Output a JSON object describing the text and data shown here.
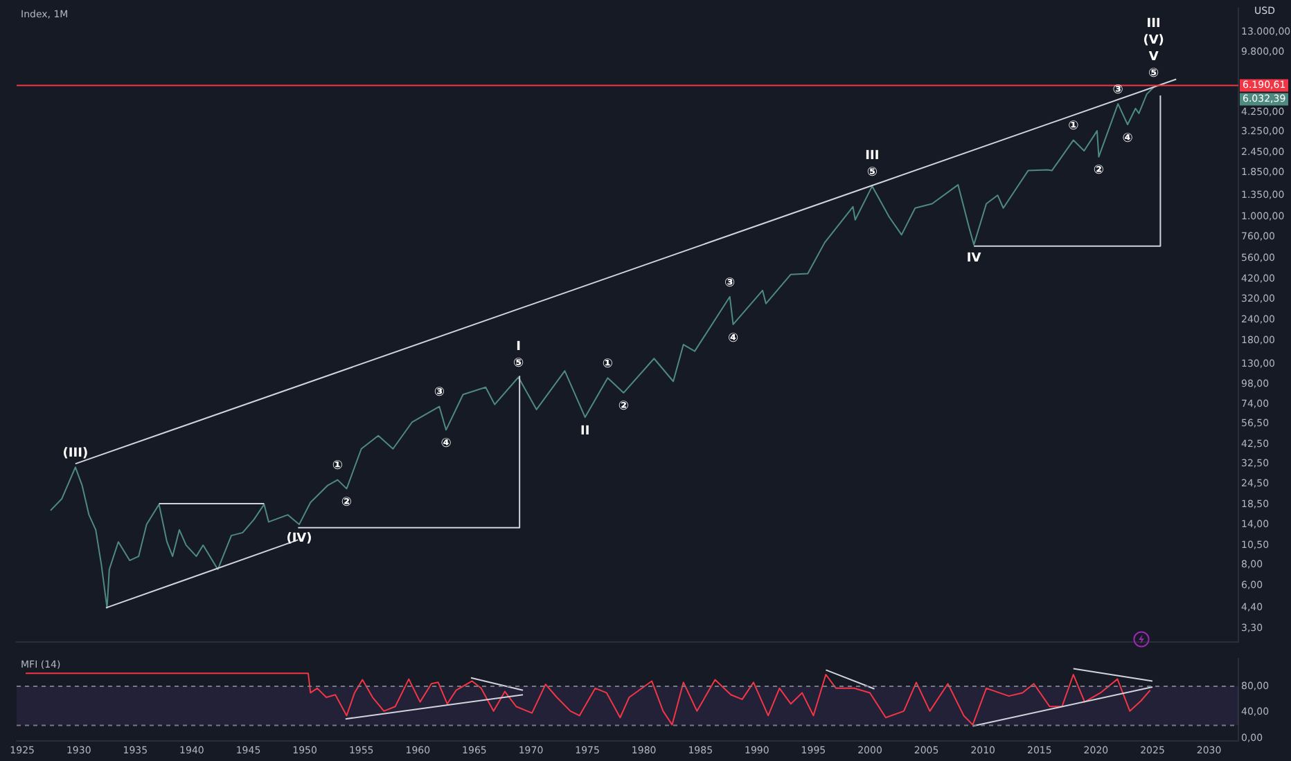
{
  "chart_data": [
    {
      "type": "line",
      "title": "Index, 1M",
      "log": true,
      "tick_labels": "y",
      "xlim": [
        1924.5,
        2032.6
      ],
      "ylim": [
        2.75,
        18000
      ],
      "yticks": [
        {
          "value": 3.3,
          "label": "3,30"
        },
        {
          "value": 4.4,
          "label": "4,40"
        },
        {
          "value": 6,
          "label": "6,00"
        },
        {
          "value": 8,
          "label": "8,00"
        },
        {
          "value": 10.5,
          "label": "10,50"
        },
        {
          "value": 14,
          "label": "14,00"
        },
        {
          "value": 18.5,
          "label": "18,50"
        },
        {
          "value": 24.5,
          "label": "24,50"
        },
        {
          "value": 32.5,
          "label": "32,50"
        },
        {
          "value": 42.5,
          "label": "42,50"
        },
        {
          "value": 56.5,
          "label": "56,50"
        },
        {
          "value": 74,
          "label": "74,00"
        },
        {
          "value": 98,
          "label": "98,00"
        },
        {
          "value": 130,
          "label": "130,00"
        },
        {
          "value": 180,
          "label": "180,00"
        },
        {
          "value": 240,
          "label": "240,00"
        },
        {
          "value": 320,
          "label": "320,00"
        },
        {
          "value": 420,
          "label": "420,00"
        },
        {
          "value": 560,
          "label": "560,00"
        },
        {
          "value": 760,
          "label": "760,00"
        },
        {
          "value": 1000,
          "label": "1.000,00"
        },
        {
          "value": 1350,
          "label": "1.350,00"
        },
        {
          "value": 1850,
          "label": "1.850,00"
        },
        {
          "value": 2450,
          "label": "2.450,00"
        },
        {
          "value": 3250,
          "label": "3.250,00"
        },
        {
          "value": 4250,
          "label": "4.250,00"
        },
        {
          "value": 9800,
          "label": "9.800,00"
        },
        {
          "value": 13000,
          "label": "13.000,00"
        }
      ],
      "series": [
        {
          "color": "#4f8a80",
          "x": [
            1927.5,
            1928.5,
            1929.7,
            1930.3,
            1930.9,
            1931.5,
            1932.0,
            1932.5,
            1932.7,
            1933.5,
            1934.5,
            1935.3,
            1936.0,
            1937.1,
            1937.8,
            1938.3,
            1938.9,
            1939.5,
            1940.4,
            1941.0,
            1942.3,
            1943.5,
            1944.5,
            1945.5,
            1946.4,
            1946.8,
            1948.5,
            1949.5,
            1950.5,
            1952,
            1952.9,
            1953.7,
            1955,
            1956.5,
            1957.8,
            1959.5,
            1961.9,
            1962.5,
            1964,
            1966,
            1966.8,
            1968.9,
            1970.5,
            1973,
            1974.8,
            1976.8,
            1978.2,
            1980.9,
            1982.6,
            1983.5,
            1984.5,
            1987.6,
            1987.9,
            1990.5,
            1990.8,
            1993,
            1994.5,
            1996,
            1998.5,
            1998.7,
            2000.2,
            2001.7,
            2002.8,
            2004,
            2005.5,
            2007.8,
            2008.8,
            2009.2,
            2010.3,
            2011.3,
            2011.8,
            2014,
            2015.7,
            2016.1,
            2018,
            2018.95,
            2020.1,
            2020.25,
            2021.95,
            2022.8,
            2023.5,
            2023.8,
            2024.5,
            2025.1
          ],
          "values": [
            17,
            20,
            31,
            24,
            16,
            13,
            8,
            4.4,
            7.5,
            11,
            8.5,
            9,
            14,
            18.5,
            11,
            9,
            13,
            10.5,
            9,
            10.5,
            7.5,
            12,
            12.5,
            15,
            18.5,
            14.5,
            16,
            14,
            19,
            24,
            26,
            23,
            40,
            48,
            40,
            58,
            72,
            52,
            85,
            94,
            74,
            108,
            69,
            118,
            62,
            107,
            87,
            140,
            102,
            170,
            155,
            330,
            225,
            360,
            300,
            450,
            455,
            700,
            1150,
            960,
            1530,
            1000,
            780,
            1130,
            1200,
            1560,
            850,
            680,
            1200,
            1350,
            1130,
            1900,
            1920,
            1900,
            2900,
            2500,
            3300,
            2300,
            4800,
            3600,
            4500,
            4200,
            5500,
            6032.39
          ]
        },
        {
          "color": "#d1d4dc",
          "x": [
            1929.7,
            2027.1
          ],
          "values": [
            32.5,
            6750
          ]
        },
        {
          "color": "#d1d4dc",
          "x": [
            1932.4,
            1949.4
          ],
          "values": [
            4.4,
            11.3
          ]
        },
        {
          "color": "#d1d4dc",
          "x": [
            1937.1,
            1946.4
          ],
          "values": [
            18.7,
            18.7
          ]
        },
        {
          "color": "#d1d4dc",
          "x": [
            1949.4,
            1969,
            1969
          ],
          "values": [
            13.4,
            13.4,
            110
          ]
        },
        {
          "color": "#d1d4dc",
          "x": [
            2009.2,
            2025.7,
            2025.7
          ],
          "values": [
            666,
            666,
            5390
          ]
        }
      ],
      "ref_lines": [
        {
          "axis": "y",
          "value": 6190.61,
          "label": "6.190,61",
          "color": "#f23645"
        }
      ],
      "annotations": [
        "USD",
        "6.032,39",
        {
          "text": "(III)",
          "x": 1929.7,
          "y": 31
        },
        {
          "text": "(IV)",
          "x": 1949.5,
          "y": 14
        },
        {
          "text": "①",
          "x": 1952.9,
          "y": 26
        },
        {
          "text": "②",
          "x": 1953.7,
          "y": 23
        },
        {
          "text": "③",
          "x": 1961.9,
          "y": 72
        },
        {
          "text": "④",
          "x": 1962.5,
          "y": 52
        },
        {
          "text": "I\n⑤",
          "x": 1968.9,
          "y": 108
        },
        {
          "text": "II",
          "x": 1974.8,
          "y": 62
        },
        {
          "text": "①",
          "x": 1976.8,
          "y": 107
        },
        {
          "text": "②",
          "x": 1978.2,
          "y": 87
        },
        {
          "text": "③",
          "x": 1987.6,
          "y": 330
        },
        {
          "text": "④",
          "x": 1987.9,
          "y": 225
        },
        {
          "text": "III\n⑤",
          "x": 2000.2,
          "y": 1530
        },
        {
          "text": "IV",
          "x": 2009.2,
          "y": 680
        },
        {
          "text": "①",
          "x": 2018,
          "y": 2900
        },
        {
          "text": "②",
          "x": 2020.25,
          "y": 2300
        },
        {
          "text": "③",
          "x": 2021.95,
          "y": 4800
        },
        {
          "text": "④",
          "x": 2022.8,
          "y": 3600
        },
        {
          "text": "III\n(V)\nV\n⑤",
          "x": 2025.1,
          "y": 6032.39
        }
      ]
    },
    {
      "type": "line",
      "title": "MFI (14)",
      "xlim": [
        1924.5,
        2032.6
      ],
      "ylim": [
        -4,
        122
      ],
      "xticks": [
        {
          "value": 1925,
          "label": "1925"
        },
        {
          "value": 1930,
          "label": "1930"
        },
        {
          "value": 1935,
          "label": "1935"
        },
        {
          "value": 1940,
          "label": "1940"
        },
        {
          "value": 1945,
          "label": "1945"
        },
        {
          "value": 1950,
          "label": "1950"
        },
        {
          "value": 1955,
          "label": "1955"
        },
        {
          "value": 1960,
          "label": "1960"
        },
        {
          "value": 1965,
          "label": "1965"
        },
        {
          "value": 1970,
          "label": "1970"
        },
        {
          "value": 1975,
          "label": "1975"
        },
        {
          "value": 1980,
          "label": "1980"
        },
        {
          "value": 1985,
          "label": "1985"
        },
        {
          "value": 1990,
          "label": "1990"
        },
        {
          "value": 1995,
          "label": "1995"
        },
        {
          "value": 2000,
          "label": "2000"
        },
        {
          "value": 2005,
          "label": "2005"
        },
        {
          "value": 2010,
          "label": "2010"
        },
        {
          "value": 2015,
          "label": "2015"
        },
        {
          "value": 2020,
          "label": "2020"
        },
        {
          "value": 2025,
          "label": "2025"
        },
        {
          "value": 2030,
          "label": "2030"
        }
      ],
      "yticks": [
        {
          "value": 0,
          "label": "0,00"
        },
        {
          "value": 40,
          "label": "40,00"
        },
        {
          "value": 80,
          "label": "80,00"
        }
      ],
      "series": [
        {
          "color": "#f23645",
          "x": [
            1925.3,
            1950.3,
            1950.5,
            1951.1,
            1951.9,
            1952.7,
            1953.7,
            1954.4,
            1955.1,
            1956.0,
            1957.0,
            1958.0,
            1959.2,
            1960.2,
            1961.2,
            1961.8,
            1962.6,
            1963.4,
            1964.8,
            1965.6,
            1966.7,
            1967.7,
            1968.7,
            1970.1,
            1971.3,
            1972.3,
            1973.5,
            1974.3,
            1975.7,
            1976.7,
            1977.9,
            1978.7,
            1980.7,
            1981.7,
            1982.5,
            1983.5,
            1984.7,
            1986.3,
            1987.7,
            1988.7,
            1989.7,
            1991.0,
            1992.0,
            1993.0,
            1994.0,
            1995.0,
            1996.1,
            1997.0,
            1998.6,
            2000.0,
            2001.4,
            2003.0,
            2004.1,
            2005.3,
            2006.9,
            2008.3,
            2009.1,
            2010.3,
            2012.3,
            2013.5,
            2014.5,
            2015.9,
            2017.0,
            2018.0,
            2019.0,
            2020.4,
            2021.9,
            2023.0,
            2024.0,
            2024.8
          ],
          "values": [
            100,
            100,
            70,
            77,
            63,
            67,
            35,
            70,
            90,
            63,
            42,
            49,
            91,
            56,
            84,
            86,
            53,
            74,
            88,
            77,
            42,
            72,
            49,
            39,
            83,
            63,
            42,
            35,
            77,
            70,
            32,
            63,
            88,
            42,
            21,
            86,
            42,
            90,
            67,
            60,
            86,
            35,
            77,
            53,
            70,
            35,
            98,
            77,
            77,
            70,
            32,
            42,
            86,
            42,
            84,
            35,
            21,
            77,
            65,
            70,
            84,
            49,
            49,
            98,
            56,
            70,
            91,
            42,
            58,
            74
          ]
        },
        {
          "color": "#d1d4dc",
          "x": [
            1953.6,
            1969.3
          ],
          "values": [
            30,
            67
          ]
        },
        {
          "color": "#d1d4dc",
          "x": [
            1964.7,
            1969.3
          ],
          "values": [
            93,
            74
          ]
        },
        {
          "color": "#d1d4dc",
          "x": [
            1996.1,
            2000.4
          ],
          "values": [
            105,
            76
          ]
        },
        {
          "color": "#d1d4dc",
          "x": [
            2009.1,
            2025.0
          ],
          "values": [
            19,
            79
          ]
        },
        {
          "color": "#d1d4dc",
          "x": [
            2018.0,
            2025.0
          ],
          "values": [
            107,
            88
          ]
        }
      ],
      "bands": [
        {
          "axis": "y",
          "from": 20,
          "to": 80,
          "color": "#7e57c2"
        }
      ],
      "ref_lines": [
        {
          "axis": "y",
          "value": 80,
          "color": "#787b86",
          "line_style": "dashed"
        },
        {
          "axis": "y",
          "value": 20,
          "color": "#787b86",
          "line_style": "dashed"
        }
      ]
    }
  ]
}
